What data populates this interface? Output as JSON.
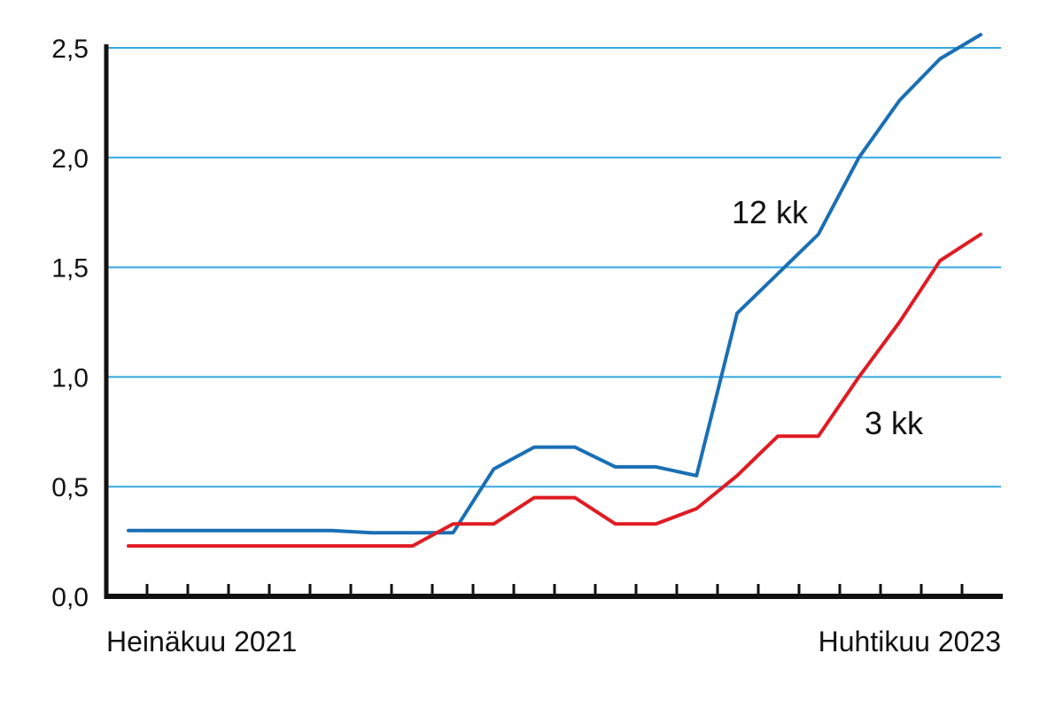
{
  "chart_data": {
    "type": "line",
    "title": "",
    "xlabel": "",
    "ylabel": "",
    "x_start_label": "Heinäkuu 2021",
    "x_end_label": "Huhtikuu 2023",
    "x": [
      "2021-07",
      "2021-08",
      "2021-09",
      "2021-10",
      "2021-11",
      "2021-12",
      "2022-01",
      "2022-02",
      "2022-03",
      "2022-04",
      "2022-05",
      "2022-06",
      "2022-07",
      "2022-08",
      "2022-09",
      "2022-10",
      "2022-11",
      "2022-12",
      "2023-01",
      "2023-02",
      "2023-03",
      "2023-04"
    ],
    "ylim": [
      0,
      2.5
    ],
    "yticks": [
      "0,0",
      "0,5",
      "1,0",
      "1,5",
      "2,0",
      "2,5"
    ],
    "grid": true,
    "series": [
      {
        "name": "12 kk",
        "color": "#1a6fb5",
        "values": [
          0.3,
          0.3,
          0.3,
          0.3,
          0.3,
          0.3,
          0.29,
          0.29,
          0.29,
          0.58,
          0.68,
          0.68,
          0.59,
          0.59,
          0.55,
          1.29,
          1.47,
          1.65,
          2.0,
          2.26,
          2.45,
          2.56
        ]
      },
      {
        "name": "3 kk",
        "color": "#e01b22",
        "values": [
          0.23,
          0.23,
          0.23,
          0.23,
          0.23,
          0.23,
          0.23,
          0.23,
          0.33,
          0.33,
          0.45,
          0.45,
          0.33,
          0.33,
          0.4,
          0.55,
          0.73,
          0.73,
          1.0,
          1.25,
          1.53,
          1.65
        ]
      }
    ],
    "gridline_color": "#33a8e0"
  }
}
